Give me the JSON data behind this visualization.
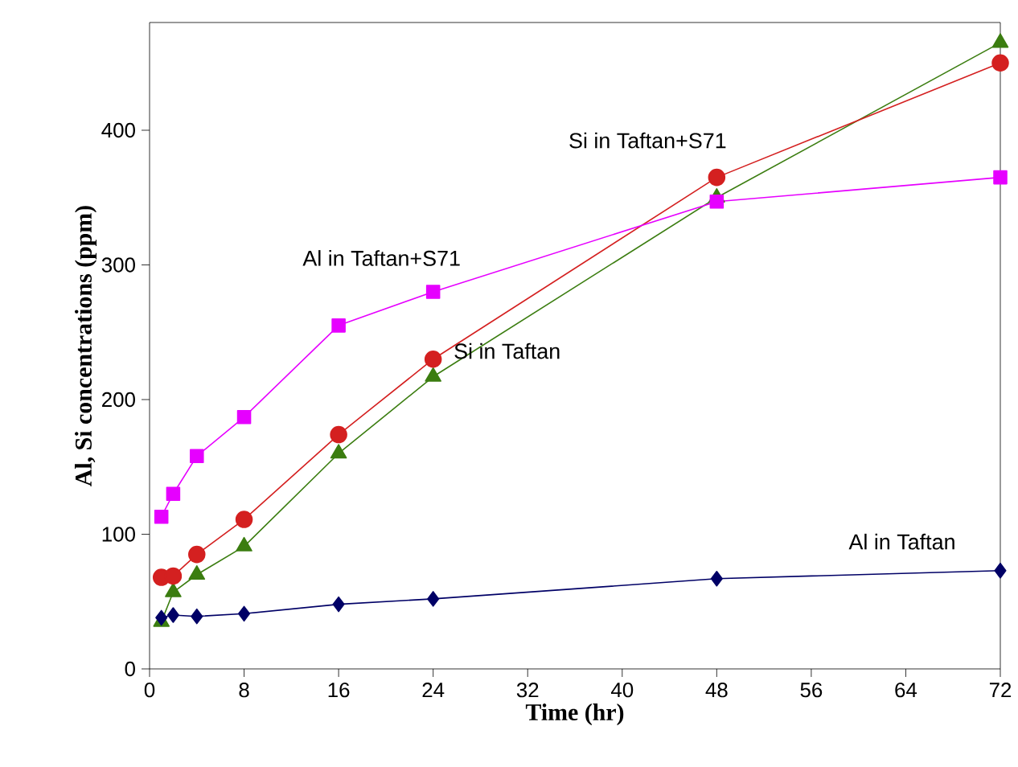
{
  "chart_data": {
    "type": "line",
    "xlabel": "Time (hr)",
    "ylabel": "Al, Si concentrations (ppm)",
    "x": [
      1,
      2,
      4,
      8,
      16,
      24,
      48,
      72
    ],
    "xlim": [
      0,
      72
    ],
    "ylim": [
      0,
      480
    ],
    "xticks": [
      0,
      8,
      16,
      24,
      32,
      40,
      48,
      56,
      64,
      72
    ],
    "yticks": [
      0,
      100,
      200,
      300,
      400
    ],
    "line_style": "solid",
    "series": [
      {
        "name": "Al in Taftan",
        "color": "#000066",
        "marker": "diamond",
        "values": [
          38,
          40,
          39,
          41,
          48,
          52,
          67,
          73
        ]
      },
      {
        "name": "Al in Taftan+S71",
        "color": "#e600ff",
        "marker": "square",
        "values": [
          113,
          130,
          158,
          187,
          255,
          280,
          347,
          365
        ]
      },
      {
        "name": "Si in Taftan+S71",
        "color": "#d42020",
        "marker": "circle",
        "values": [
          68,
          69,
          85,
          111,
          174,
          230,
          365,
          450
        ]
      },
      {
        "name": "Si in Taftan",
        "color": "#3b7d10",
        "marker": "triangle",
        "values": [
          35,
          57,
          70,
          91,
          160,
          217,
          350,
          465
        ]
      }
    ]
  }
}
